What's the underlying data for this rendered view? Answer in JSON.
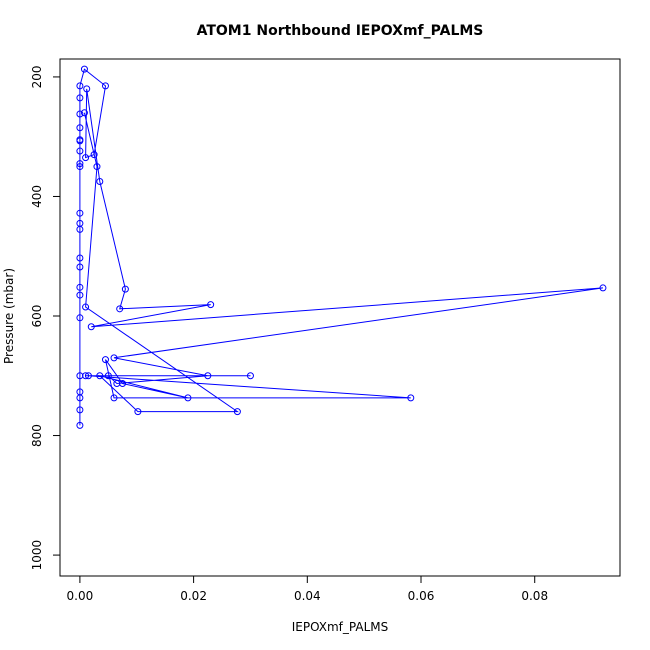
{
  "chart_data": {
    "type": "line",
    "title": "ATOM1 Northbound IEPOXmf_PALMS",
    "xlabel": "IEPOXmf_PALMS",
    "ylabel": "Pressure (mbar)",
    "xlim": [
      -0.0035,
      0.095
    ],
    "ylim": [
      1035,
      170
    ],
    "y_reversed": true,
    "xticks": [
      0.0,
      0.02,
      0.04,
      0.06,
      0.08
    ],
    "xtick_labels": [
      "0.00",
      "0.02",
      "0.04",
      "0.06",
      "0.08"
    ],
    "yticks": [
      200,
      400,
      600,
      800,
      1000
    ],
    "ytick_labels": [
      "200",
      "400",
      "600",
      "800",
      "1000"
    ],
    "grid": false,
    "legend": "none",
    "color": "#0000ff",
    "marker": "open-circle",
    "series": [
      {
        "x": [
          0.0,
          0.0,
          0.0,
          0.0,
          0.0,
          0.0,
          0.0,
          0.0,
          0.0,
          0.0,
          0.0,
          0.0,
          0.0,
          0.0,
          0.0,
          0.0,
          0.0,
          0.0,
          0.0,
          0.0,
          0.0,
          0.0,
          0.0008,
          0.0045,
          0.0025,
          0.001,
          0.0012,
          0.0035,
          0.008,
          0.007,
          0.023,
          0.002,
          0.092,
          0.006,
          0.0225,
          0.0065,
          0.005,
          0.001,
          0.03,
          0.0015,
          0.0582,
          0.006,
          0.0045,
          0.0075,
          0.019,
          0.0035,
          0.0102,
          0.0277,
          0.001,
          0.003,
          0.0008
        ],
        "y": [
          783,
          757,
          737,
          727,
          700,
          603,
          565,
          552,
          518,
          503,
          455,
          445,
          428,
          350,
          345,
          324,
          307,
          305,
          285,
          262,
          235,
          215,
          187,
          215,
          330,
          335,
          220,
          375,
          555,
          588,
          581,
          618,
          553,
          670,
          700,
          713,
          700,
          700,
          700,
          700,
          737,
          737,
          673,
          713,
          737,
          700,
          760,
          760,
          585,
          350,
          260
        ]
      }
    ]
  }
}
